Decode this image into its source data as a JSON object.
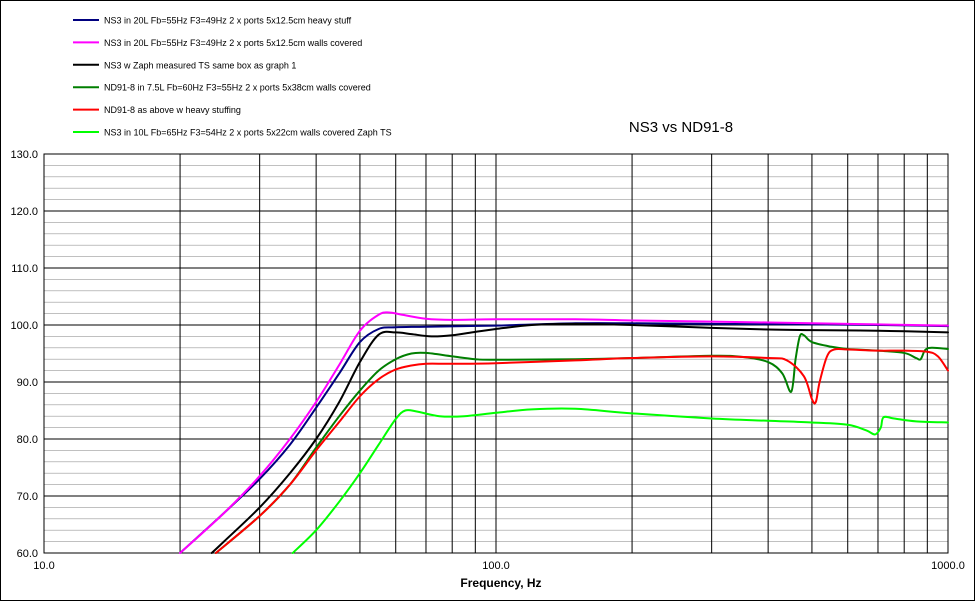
{
  "chart_data": {
    "type": "line",
    "title": "NS3 vs ND91-8",
    "xlabel": "Frequency, Hz",
    "ylabel": "",
    "x_scale": "log",
    "xlim": [
      10,
      1000
    ],
    "ylim": [
      60,
      130
    ],
    "x_tick_labels": [
      "10.0",
      "100.0",
      "1000.0"
    ],
    "y_tick_labels": [
      "60.0",
      "70.0",
      "80.0",
      "90.0",
      "100.0",
      "110.0",
      "120.0",
      "130.0"
    ],
    "grid": true,
    "legend_position": "top-left",
    "colors": {
      "background": "#ffffff",
      "grid": "#000000",
      "text": "#000000"
    },
    "series": [
      {
        "name": "NS3 in 20L Fb=55Hz F3=49Hz  2 x ports 5x12.5cm heavy stuff",
        "color": "#00007f",
        "points": [
          [
            20,
            60
          ],
          [
            25,
            67
          ],
          [
            30,
            73
          ],
          [
            35,
            79
          ],
          [
            40,
            85.5
          ],
          [
            45,
            91.5
          ],
          [
            50,
            97
          ],
          [
            55,
            99.3
          ],
          [
            60,
            99.6
          ],
          [
            70,
            99.7
          ],
          [
            100,
            99.9
          ],
          [
            150,
            100.3
          ],
          [
            200,
            100.3
          ],
          [
            300,
            100.2
          ],
          [
            500,
            100.1
          ],
          [
            700,
            100.0
          ],
          [
            1000,
            99.8
          ]
        ]
      },
      {
        "name": "NS3 in 20L Fb=55Hz F3=49Hz  2 x ports 5x12.5cm walls covered",
        "color": "#ff00ff",
        "points": [
          [
            20,
            60
          ],
          [
            25,
            67
          ],
          [
            30,
            73.5
          ],
          [
            35,
            80
          ],
          [
            40,
            86.5
          ],
          [
            45,
            93
          ],
          [
            50,
            99
          ],
          [
            55,
            101.8
          ],
          [
            58,
            102.2
          ],
          [
            62,
            101.8
          ],
          [
            70,
            101.1
          ],
          [
            80,
            100.9
          ],
          [
            100,
            101.0
          ],
          [
            150,
            101.0
          ],
          [
            200,
            100.8
          ],
          [
            300,
            100.6
          ],
          [
            500,
            100.3
          ],
          [
            700,
            100.1
          ],
          [
            1000,
            99.9
          ]
        ]
      },
      {
        "name": "NS3 w Zaph measured TS same box as graph 1",
        "color": "#000000",
        "points": [
          [
            23.5,
            60
          ],
          [
            25,
            62
          ],
          [
            30,
            68
          ],
          [
            35,
            74
          ],
          [
            40,
            80
          ],
          [
            45,
            86.5
          ],
          [
            50,
            93.5
          ],
          [
            55,
            98.3
          ],
          [
            60,
            98.7
          ],
          [
            65,
            98.4
          ],
          [
            72,
            98.0
          ],
          [
            80,
            98.2
          ],
          [
            90,
            98.8
          ],
          [
            100,
            99.3
          ],
          [
            120,
            100.0
          ],
          [
            150,
            100.2
          ],
          [
            200,
            100.0
          ],
          [
            300,
            99.5
          ],
          [
            400,
            99.2
          ],
          [
            500,
            99.1
          ],
          [
            700,
            99.0
          ],
          [
            1000,
            98.7
          ]
        ]
      },
      {
        "name": "ND91-8 in 7.5L Fb=60Hz F3=55Hz  2 x ports 5x38cm walls covered",
        "color": "#007f00",
        "points": [
          [
            24,
            60
          ],
          [
            30,
            66.5
          ],
          [
            35,
            72
          ],
          [
            40,
            78.5
          ],
          [
            45,
            84
          ],
          [
            50,
            88.5
          ],
          [
            55,
            92
          ],
          [
            60,
            94
          ],
          [
            65,
            95
          ],
          [
            70,
            95.1
          ],
          [
            80,
            94.5
          ],
          [
            90,
            94
          ],
          [
            100,
            93.9
          ],
          [
            150,
            94
          ],
          [
            200,
            94.2
          ],
          [
            300,
            94.6
          ],
          [
            350,
            94.4
          ],
          [
            400,
            93.5
          ],
          [
            430,
            91.5
          ],
          [
            450,
            88.3
          ],
          [
            460,
            94
          ],
          [
            470,
            98
          ],
          [
            480,
            98.2
          ],
          [
            500,
            97
          ],
          [
            550,
            96.2
          ],
          [
            600,
            95.8
          ],
          [
            700,
            95.5
          ],
          [
            800,
            95.1
          ],
          [
            850,
            94.2
          ],
          [
            870,
            94
          ],
          [
            890,
            95.6
          ],
          [
            920,
            96
          ],
          [
            1000,
            95.8
          ]
        ]
      },
      {
        "name": "ND91-8 as above w heavy stuffing",
        "color": "#ff0000",
        "points": [
          [
            24,
            60
          ],
          [
            30,
            66.5
          ],
          [
            35,
            72
          ],
          [
            40,
            78
          ],
          [
            45,
            83
          ],
          [
            50,
            87.5
          ],
          [
            55,
            90.5
          ],
          [
            60,
            92.2
          ],
          [
            65,
            92.9
          ],
          [
            70,
            93.2
          ],
          [
            80,
            93.2
          ],
          [
            100,
            93.3
          ],
          [
            150,
            93.8
          ],
          [
            200,
            94.2
          ],
          [
            300,
            94.5
          ],
          [
            400,
            94.2
          ],
          [
            440,
            93.8
          ],
          [
            480,
            91
          ],
          [
            500,
            87
          ],
          [
            510,
            86.5
          ],
          [
            520,
            90
          ],
          [
            540,
            94.5
          ],
          [
            560,
            95.7
          ],
          [
            600,
            95.7
          ],
          [
            700,
            95.5
          ],
          [
            800,
            95.5
          ],
          [
            900,
            95.3
          ],
          [
            950,
            94.5
          ],
          [
            1000,
            92
          ]
        ]
      },
      {
        "name": "NS3 in 10L Fb=65Hz F3=54Hz  2 x ports 5x22cm walls covered Zaph TS",
        "color": "#00ff00",
        "points": [
          [
            35.5,
            60
          ],
          [
            40,
            64
          ],
          [
            45,
            69
          ],
          [
            50,
            74
          ],
          [
            55,
            79
          ],
          [
            60,
            83.5
          ],
          [
            63,
            85
          ],
          [
            67,
            84.8
          ],
          [
            75,
            84
          ],
          [
            85,
            84
          ],
          [
            100,
            84.6
          ],
          [
            120,
            85.2
          ],
          [
            150,
            85.3
          ],
          [
            200,
            84.5
          ],
          [
            300,
            83.6
          ],
          [
            400,
            83.2
          ],
          [
            500,
            82.9
          ],
          [
            600,
            82.5
          ],
          [
            660,
            81.5
          ],
          [
            690,
            80.8
          ],
          [
            710,
            82
          ],
          [
            720,
            83.8
          ],
          [
            760,
            83.6
          ],
          [
            850,
            83.1
          ],
          [
            1000,
            82.9
          ]
        ]
      }
    ]
  }
}
